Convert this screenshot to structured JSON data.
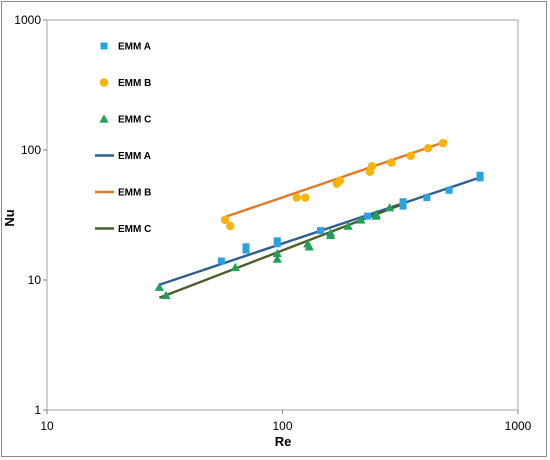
{
  "chart_data": {
    "type": "scatter",
    "x_scale": "log",
    "y_scale": "log",
    "xlim": [
      10,
      1000
    ],
    "ylim": [
      1,
      1000
    ],
    "xlabel": "Re",
    "ylabel": "Nu",
    "x_ticks": [
      10,
      100,
      1000
    ],
    "y_ticks": [
      1,
      10,
      100,
      1000
    ],
    "x_tick_labels": [
      "10",
      "100",
      "1000"
    ],
    "y_tick_labels": [
      "1",
      "10",
      "100",
      "1000"
    ],
    "grid": false,
    "legend_position": "top-left",
    "colors": {
      "emm_a": "#29a3e0",
      "emm_b": "#f5b40c",
      "emm_c": "#22a05a",
      "emm_a_fit": "#2f5f8f",
      "emm_b_fit": "#e07a23",
      "emm_c_fit": "#4b5e26"
    },
    "series": [
      {
        "name": "EMM A",
        "kind": "markers",
        "marker": "square",
        "color_key": "emm_a",
        "points": [
          [
            55,
            14
          ],
          [
            70,
            17
          ],
          [
            70,
            18
          ],
          [
            95,
            19
          ],
          [
            95,
            20
          ],
          [
            145,
            24
          ],
          [
            230,
            31
          ],
          [
            325,
            37
          ],
          [
            325,
            40
          ],
          [
            410,
            43
          ],
          [
            510,
            49
          ],
          [
            690,
            61
          ],
          [
            690,
            64
          ]
        ]
      },
      {
        "name": "EMM B",
        "kind": "markers",
        "marker": "circle",
        "color_key": "emm_b",
        "points": [
          [
            57,
            29
          ],
          [
            60,
            26
          ],
          [
            115,
            43
          ],
          [
            125,
            43
          ],
          [
            170,
            55
          ],
          [
            175,
            58
          ],
          [
            235,
            68
          ],
          [
            240,
            75
          ],
          [
            290,
            80
          ],
          [
            350,
            90
          ],
          [
            415,
            103
          ],
          [
            480,
            113
          ]
        ]
      },
      {
        "name": "EMM C",
        "kind": "markers",
        "marker": "triangle",
        "color_key": "emm_c",
        "points": [
          [
            30,
            8.8
          ],
          [
            32,
            7.6
          ],
          [
            63,
            12.5
          ],
          [
            95,
            14.5
          ],
          [
            95,
            16
          ],
          [
            128,
            19
          ],
          [
            130,
            18
          ],
          [
            160,
            22
          ],
          [
            160,
            23
          ],
          [
            190,
            26
          ],
          [
            215,
            29
          ],
          [
            250,
            31
          ],
          [
            250,
            32
          ],
          [
            285,
            36
          ]
        ]
      },
      {
        "name": "EMM A",
        "kind": "line",
        "color_key": "emm_a_fit",
        "points": [
          [
            30,
            9.2
          ],
          [
            700,
            62
          ]
        ]
      },
      {
        "name": "EMM B",
        "kind": "line",
        "color_key": "emm_b_fit",
        "points": [
          [
            57,
            30.5
          ],
          [
            500,
            117
          ]
        ]
      },
      {
        "name": "EMM C",
        "kind": "line",
        "color_key": "emm_c_fit",
        "points": [
          [
            30,
            7.3
          ],
          [
            320,
            38
          ]
        ]
      }
    ]
  }
}
